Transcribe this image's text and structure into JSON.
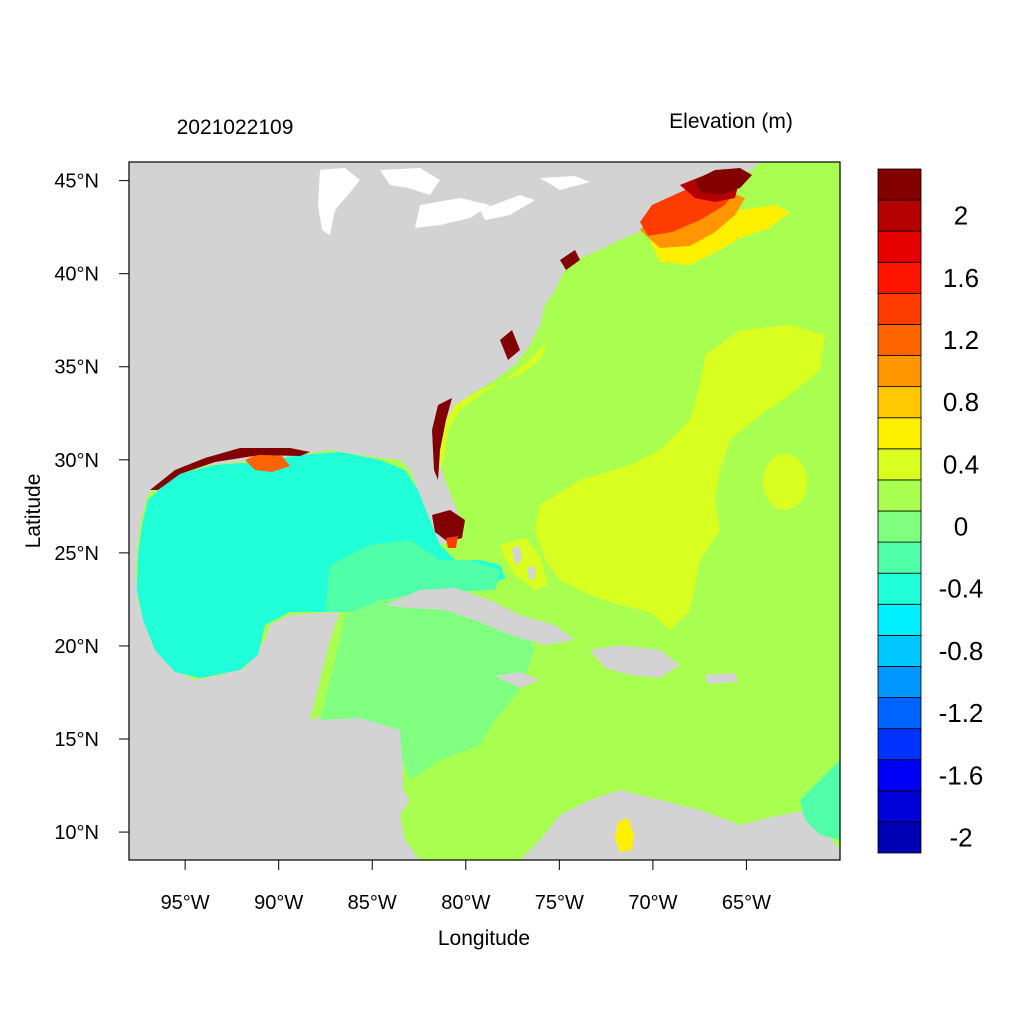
{
  "header": {
    "timestamp": "2021022109",
    "variable_title": "Elevation (m)"
  },
  "axes": {
    "xlabel": "Longitude",
    "ylabel": "Latitude",
    "x_ticks": [
      {
        "value": -95,
        "label": "95°W"
      },
      {
        "value": -90,
        "label": "90°W"
      },
      {
        "value": -85,
        "label": "85°W"
      },
      {
        "value": -80,
        "label": "80°W"
      },
      {
        "value": -75,
        "label": "75°W"
      },
      {
        "value": -70,
        "label": "70°W"
      },
      {
        "value": -65,
        "label": "65°W"
      }
    ],
    "y_ticks": [
      {
        "value": 45,
        "label": "45°N"
      },
      {
        "value": 40,
        "label": "40°N"
      },
      {
        "value": 35,
        "label": "35°N"
      },
      {
        "value": 30,
        "label": "30°N"
      },
      {
        "value": 25,
        "label": "25°N"
      },
      {
        "value": 20,
        "label": "20°N"
      },
      {
        "value": 15,
        "label": "15°N"
      },
      {
        "value": 10,
        "label": "10°N"
      }
    ],
    "lon_range": [
      -98,
      -60
    ],
    "lat_range": [
      8.5,
      46
    ]
  },
  "colorbar": {
    "levels": [
      {
        "color": "#0000b4",
        "label": "-2"
      },
      {
        "color": "#0000d8",
        "label": ""
      },
      {
        "color": "#0000fa",
        "label": "-1.6"
      },
      {
        "color": "#0032ff",
        "label": ""
      },
      {
        "color": "#0064ff",
        "label": "-1.2"
      },
      {
        "color": "#0096ff",
        "label": ""
      },
      {
        "color": "#00c8ff",
        "label": "-0.8"
      },
      {
        "color": "#00f0ff",
        "label": ""
      },
      {
        "color": "#20ffd8",
        "label": "-0.4"
      },
      {
        "color": "#50ffa8",
        "label": ""
      },
      {
        "color": "#80ff80",
        "label": "0"
      },
      {
        "color": "#a8ff50",
        "label": ""
      },
      {
        "color": "#d8ff20",
        "label": "0.4"
      },
      {
        "color": "#fff000",
        "label": ""
      },
      {
        "color": "#ffc800",
        "label": "0.8"
      },
      {
        "color": "#ff9600",
        "label": ""
      },
      {
        "color": "#ff6400",
        "label": "1.2"
      },
      {
        "color": "#ff3c00",
        "label": ""
      },
      {
        "color": "#ff1400",
        "label": "1.6"
      },
      {
        "color": "#e60000",
        "label": ""
      },
      {
        "color": "#b40000",
        "label": "2"
      },
      {
        "color": "#820000",
        "label": ""
      }
    ]
  },
  "map_colors": {
    "land": "#d3d3d3",
    "lakes": "#ffffff",
    "gulf": "#20ffd8",
    "caribbean": "#80ff80",
    "atlantic": "#a8ff50",
    "positive_anomaly": "#d8ff20",
    "gulf_of_maine_core": "#820000"
  }
}
